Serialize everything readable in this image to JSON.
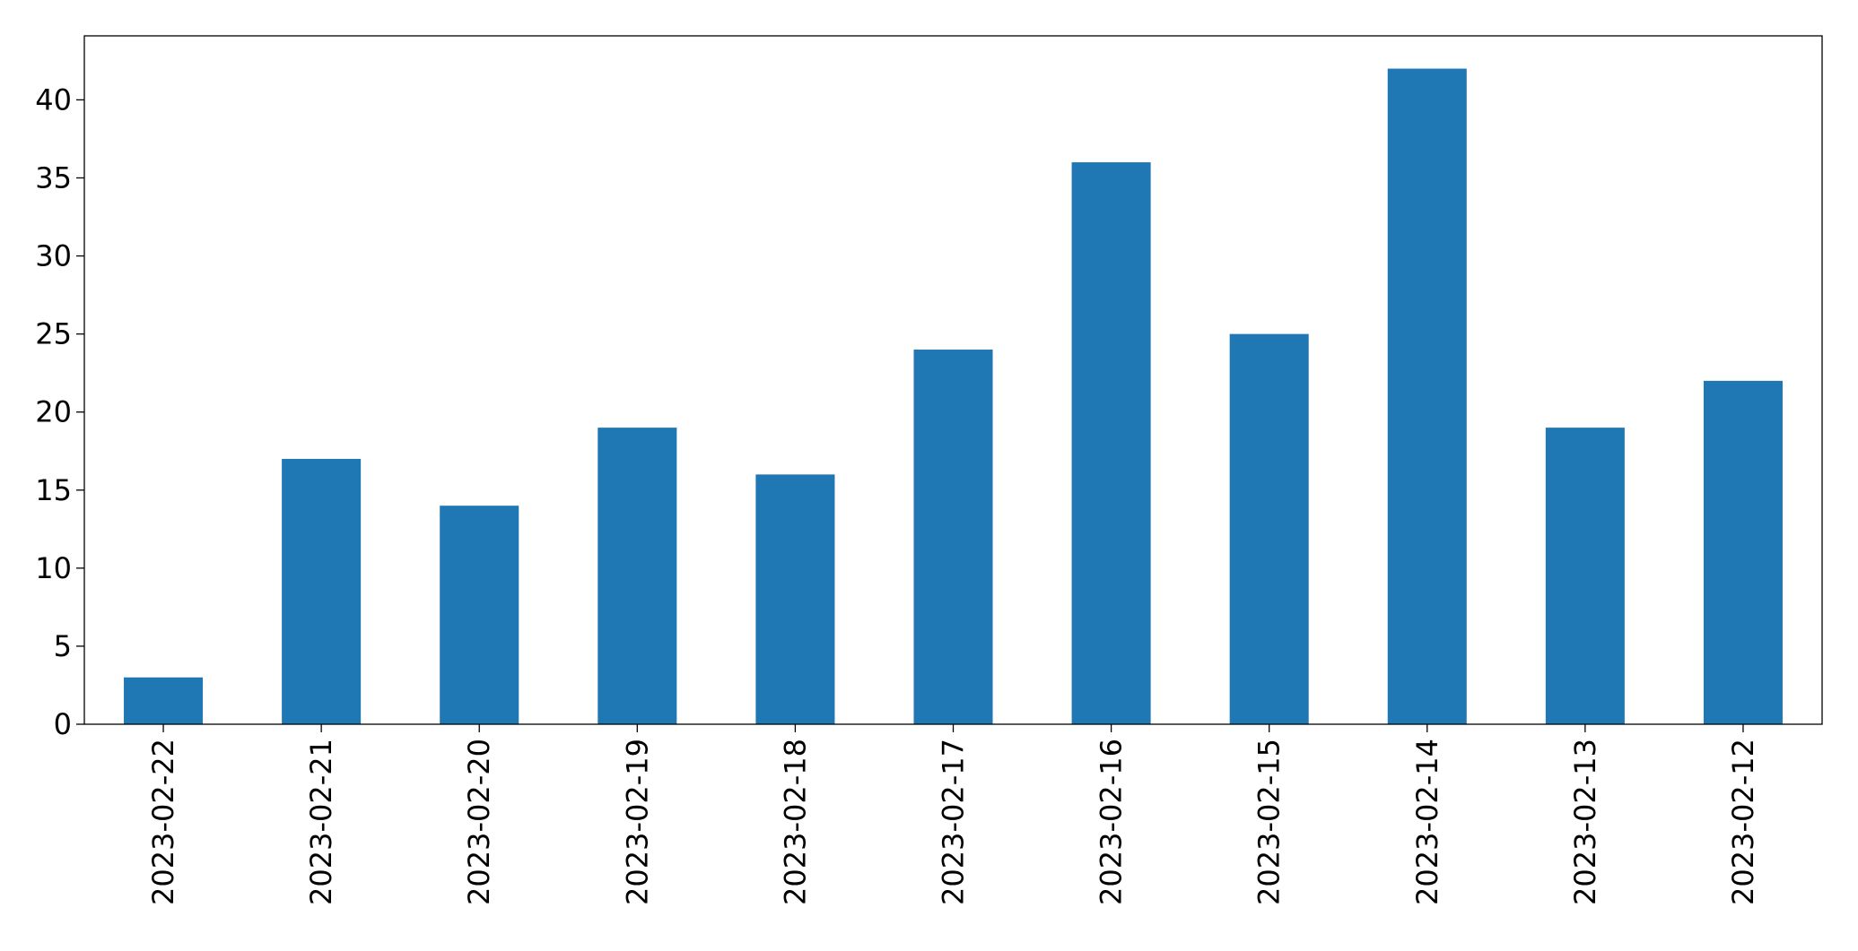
{
  "chart_data": {
    "type": "bar",
    "categories": [
      "2023-02-22",
      "2023-02-21",
      "2023-02-20",
      "2023-02-19",
      "2023-02-18",
      "2023-02-17",
      "2023-02-16",
      "2023-02-15",
      "2023-02-14",
      "2023-02-13",
      "2023-02-12"
    ],
    "values": [
      3,
      17,
      14,
      19,
      16,
      24,
      36,
      25,
      42,
      19,
      22
    ],
    "color": "#1f77b4",
    "ylim": [
      0,
      44.1
    ],
    "yticks": [
      0,
      5,
      10,
      15,
      20,
      25,
      30,
      35,
      40
    ],
    "grid": false
  }
}
